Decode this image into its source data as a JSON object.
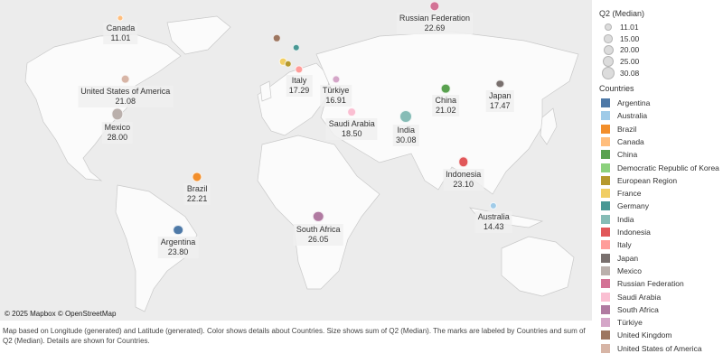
{
  "attribution": "© 2025 Mapbox © OpenStreetMap",
  "footer": "Map based on Longitude (generated) and Latitude (generated).  Color shows details about Countries.  Size shows sum of Q2 (Median).  The marks are labeled by Countries and sum of Q2 (Median).  Details are shown for Countries.",
  "size_legend": {
    "title": "Q2 (Median)",
    "values": [
      "11.01",
      "15.00",
      "20.00",
      "25.00",
      "30.08"
    ]
  },
  "color_legend": {
    "title": "Countries",
    "items": [
      {
        "name": "Argentina",
        "color": "#4e79a7"
      },
      {
        "name": "Australia",
        "color": "#a0cbe8"
      },
      {
        "name": "Brazil",
        "color": "#f28e2b"
      },
      {
        "name": "Canada",
        "color": "#ffbe7d"
      },
      {
        "name": "China",
        "color": "#59a14f"
      },
      {
        "name": "Democratic Republic of Korea",
        "color": "#8cd17d"
      },
      {
        "name": "European Region",
        "color": "#b6992d"
      },
      {
        "name": "France",
        "color": "#f1ce63"
      },
      {
        "name": "Germany",
        "color": "#499894"
      },
      {
        "name": "India",
        "color": "#86bcb6"
      },
      {
        "name": "Indonesia",
        "color": "#e15759"
      },
      {
        "name": "Italy",
        "color": "#ff9d9a"
      },
      {
        "name": "Japan",
        "color": "#79706e"
      },
      {
        "name": "Mexico",
        "color": "#bab0ac"
      },
      {
        "name": "Russian Federation",
        "color": "#d37295"
      },
      {
        "name": "Saudi Arabia",
        "color": "#fabfd2"
      },
      {
        "name": "South Africa",
        "color": "#b07aa1"
      },
      {
        "name": "Türkiye",
        "color": "#d4a6c8"
      },
      {
        "name": "United Kingdom",
        "color": "#9d7660"
      },
      {
        "name": "United States of America",
        "color": "#d7b5a6"
      }
    ]
  },
  "marks": [
    {
      "name": "Canada",
      "value": 11.01,
      "label": "Canada",
      "value_label": "11.01",
      "color": "#ffbe7d",
      "lon": -100,
      "lat": 60
    },
    {
      "name": "United States of America",
      "value": 21.08,
      "label": "United States of America",
      "value_label": "21.08",
      "color": "#d7b5a6",
      "lon": -97,
      "lat": 39
    },
    {
      "name": "Mexico",
      "value": 28.0,
      "label": "Mexico",
      "value_label": "28.00",
      "color": "#bab0ac",
      "lon": -102,
      "lat": 23
    },
    {
      "name": "Brazil",
      "value": 22.21,
      "label": "Brazil",
      "value_label": "22.21",
      "color": "#f28e2b",
      "lon": -52,
      "lat": -10
    },
    {
      "name": "Argentina",
      "value": 23.8,
      "label": "Argentina",
      "value_label": "23.80",
      "color": "#4e79a7",
      "lon": -64,
      "lat": -36
    },
    {
      "name": "Russian Federation",
      "value": 22.69,
      "label": "Russian Federation",
      "value_label": "22.69",
      "color": "#d37295",
      "lon": 97,
      "lat": 63
    },
    {
      "name": "United Kingdom",
      "value": 15.0,
      "label": "",
      "value_label": "",
      "color": "#9d7660",
      "lon": -2,
      "lat": 54
    },
    {
      "name": "Germany",
      "value": 15.0,
      "label": "",
      "value_label": "",
      "color": "#499894",
      "lon": 10,
      "lat": 51
    },
    {
      "name": "France",
      "value": 15.0,
      "label": "",
      "value_label": "",
      "color": "#f1ce63",
      "lon": 2,
      "lat": 46
    },
    {
      "name": "European Region",
      "value": 15.0,
      "label": "",
      "value_label": "",
      "color": "#b6992d",
      "lon": 5,
      "lat": 45
    },
    {
      "name": "Italy",
      "value": 17.29,
      "label": "Italy",
      "value_label": "17.29",
      "color": "#ff9d9a",
      "lon": 12,
      "lat": 43
    },
    {
      "name": "Türkiye",
      "value": 16.91,
      "label": "Türkiye",
      "value_label": "16.91",
      "color": "#d4a6c8",
      "lon": 35,
      "lat": 39
    },
    {
      "name": "Saudi Arabia",
      "value": 18.5,
      "label": "Saudi Arabia",
      "value_label": "18.50",
      "color": "#fabfd2",
      "lon": 45,
      "lat": 24
    },
    {
      "name": "India",
      "value": 30.08,
      "label": "India",
      "value_label": "30.08",
      "color": "#86bcb6",
      "lon": 79,
      "lat": 22
    },
    {
      "name": "China",
      "value": 21.02,
      "label": "China",
      "value_label": "21.02",
      "color": "#59a14f",
      "lon": 104,
      "lat": 35
    },
    {
      "name": "Japan",
      "value": 17.47,
      "label": "Japan",
      "value_label": "17.47",
      "color": "#79706e",
      "lon": 138,
      "lat": 37
    },
    {
      "name": "Indonesia",
      "value": 23.1,
      "label": "Indonesia",
      "value_label": "23.10",
      "color": "#e15759",
      "lon": 115,
      "lat": -2
    },
    {
      "name": "Australia",
      "value": 14.43,
      "label": "Australia",
      "value_label": "14.43",
      "color": "#a0cbe8",
      "lon": 134,
      "lat": -25
    },
    {
      "name": "South Africa",
      "value": 26.05,
      "label": "South Africa",
      "value_label": "26.05",
      "color": "#b07aa1",
      "lon": 24,
      "lat": -30
    }
  ]
}
